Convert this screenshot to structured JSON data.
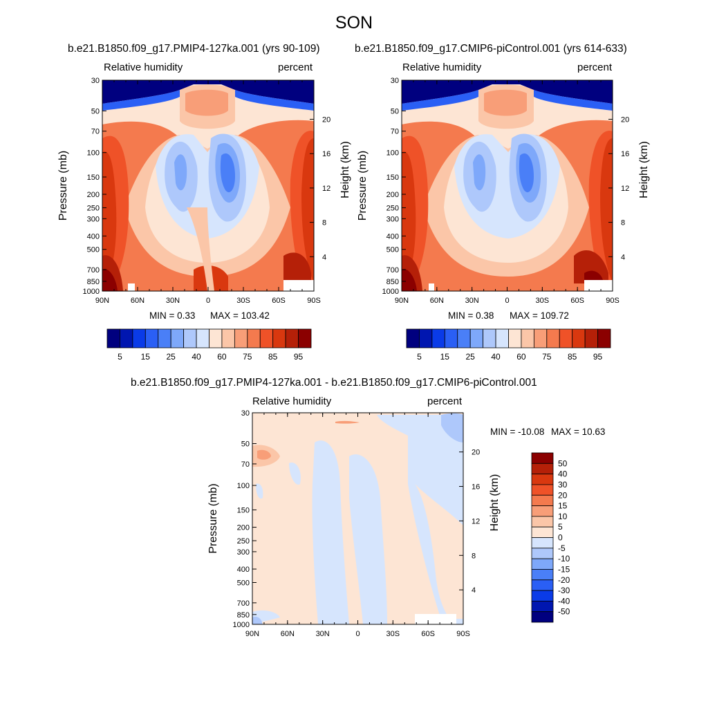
{
  "page": {
    "title": "SON",
    "case1": "b.e21.B1850.f09_g17.PMIP4-127ka.001 (yrs 90-109)",
    "case2": "b.e21.B1850.f09_g17.CMIP6-piControl.001 (yrs 614-633)",
    "diff_title": "b.e21.B1850.f09_g17.PMIP4-127ka.001 - b.e21.B1850.f09_g17.CMIP6-piControl.001"
  },
  "colors": {
    "abs": [
      "#00007f",
      "#0016b0",
      "#0a3be8",
      "#2a5ff5",
      "#4a7ff7",
      "#7ea8fa",
      "#aec8fb",
      "#d6e5fd",
      "#fde5d4",
      "#fbc6a8",
      "#f89e78",
      "#f47a4e",
      "#ef5228",
      "#d9380f",
      "#b52008",
      "#8b0000"
    ],
    "diff": [
      "#00007f",
      "#0016b0",
      "#0a3be8",
      "#2a5ff5",
      "#4a7ff7",
      "#7ea8fa",
      "#aec8fb",
      "#d6e5fd",
      "#fde5d4",
      "#fbc6a8",
      "#f89e78",
      "#f47a4e",
      "#ef5228",
      "#d9380f",
      "#b52008",
      "#8b0000"
    ]
  },
  "chart_data": [
    {
      "type": "heatmap",
      "title": "b.e21.B1850.f09_g17.PMIP4-127ka.001 (yrs 90-109)",
      "variable": "Relative humidity",
      "units": "percent",
      "xlabel": "",
      "ylabel": "Pressure (mb)",
      "y2label": "Height (km)",
      "x_ticks": [
        "90N",
        "60N",
        "30N",
        "0",
        "30S",
        "60S",
        "90S"
      ],
      "y_ticks": [
        "30",
        "50",
        "70",
        "100",
        "150",
        "200",
        "250",
        "300",
        "400",
        "500",
        "700",
        "850",
        "1000"
      ],
      "y2_ticks": [
        "20",
        "16",
        "12",
        "8",
        "4"
      ],
      "min_label": "MIN =   0.33",
      "max_label": "MAX = 103.42",
      "colorbar_labels": [
        "5",
        "15",
        "25",
        "40",
        "60",
        "75",
        "85",
        "95"
      ]
    },
    {
      "type": "heatmap",
      "title": "b.e21.B1850.f09_g17.CMIP6-piControl.001 (yrs 614-633)",
      "variable": "Relative humidity",
      "units": "percent",
      "xlabel": "",
      "ylabel": "Pressure (mb)",
      "y2label": "Height (km)",
      "x_ticks": [
        "90N",
        "60N",
        "30N",
        "0",
        "30S",
        "60S",
        "90S"
      ],
      "y_ticks": [
        "30",
        "50",
        "70",
        "100",
        "150",
        "200",
        "250",
        "300",
        "400",
        "500",
        "700",
        "850",
        "1000"
      ],
      "y2_ticks": [
        "20",
        "16",
        "12",
        "8",
        "4"
      ],
      "min_label": "MIN =   0.38",
      "max_label": "MAX = 109.72",
      "colorbar_labels": [
        "5",
        "15",
        "25",
        "40",
        "60",
        "75",
        "85",
        "95"
      ]
    },
    {
      "type": "heatmap",
      "title": "b.e21.B1850.f09_g17.PMIP4-127ka.001 - b.e21.B1850.f09_g17.CMIP6-piControl.001",
      "variable": "Relative humidity",
      "units": "percent",
      "xlabel": "",
      "ylabel": "Pressure (mb)",
      "y2label": "Height (km)",
      "x_ticks": [
        "90N",
        "60N",
        "30N",
        "0",
        "30S",
        "60S",
        "90S"
      ],
      "y_ticks": [
        "30",
        "50",
        "70",
        "100",
        "150",
        "200",
        "250",
        "300",
        "400",
        "500",
        "700",
        "850",
        "1000"
      ],
      "y2_ticks": [
        "20",
        "16",
        "12",
        "8",
        "4"
      ],
      "min_label": "MIN = -10.08",
      "max_label": "MAX =  10.63",
      "colorbar_labels": [
        "50",
        "40",
        "30",
        "20",
        "15",
        "10",
        "5",
        "0",
        "-5",
        "-10",
        "-15",
        "-20",
        "-30",
        "-40",
        "-50"
      ]
    }
  ]
}
